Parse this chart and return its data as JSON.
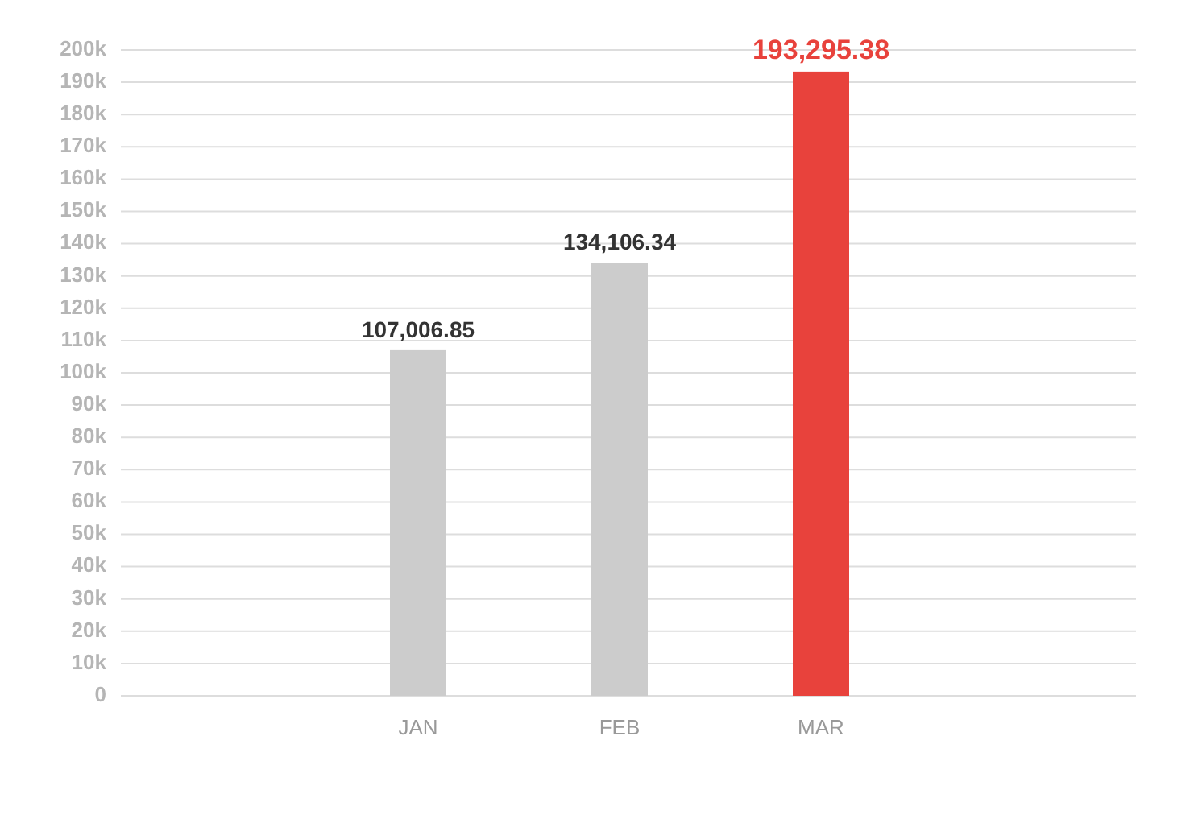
{
  "chart_data": {
    "type": "bar",
    "categories": [
      "JAN",
      "FEB",
      "MAR"
    ],
    "values": [
      107006.85,
      134106.34,
      193295.38
    ],
    "value_labels": [
      "107,006.85",
      "134,106.34",
      "193,295.38"
    ],
    "colors": [
      "#cccccc",
      "#cccccc",
      "#e8423c"
    ],
    "ylim": [
      0,
      200000
    ],
    "yticks": [
      0,
      {
        "value": 10000,
        "label": "10k"
      },
      {
        "value": 20000,
        "label": "20k"
      },
      {
        "value": 30000,
        "label": "30k"
      },
      {
        "value": 40000,
        "label": "40k"
      },
      {
        "value": 50000,
        "label": "50k"
      },
      {
        "value": 60000,
        "label": "60k"
      },
      {
        "value": 70000,
        "label": "70k"
      },
      {
        "value": 80000,
        "label": "80k"
      },
      {
        "value": 90000,
        "label": "90k"
      },
      {
        "value": 100000,
        "label": "100k"
      },
      {
        "value": 110000,
        "label": "110k"
      },
      {
        "value": 120000,
        "label": "120k"
      },
      {
        "value": 130000,
        "label": "130k"
      },
      {
        "value": 140000,
        "label": "140k"
      },
      {
        "value": 150000,
        "label": "150k"
      },
      {
        "value": 160000,
        "label": "160k"
      },
      {
        "value": 170000,
        "label": "170k"
      },
      {
        "value": 180000,
        "label": "180k"
      },
      {
        "value": 190000,
        "label": "190k"
      },
      {
        "value": 200000,
        "label": "200k"
      }
    ],
    "grid": "y"
  }
}
